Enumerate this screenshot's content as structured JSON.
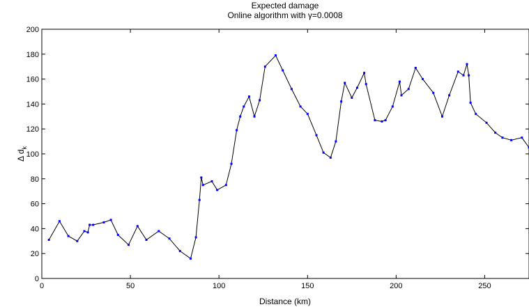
{
  "chart_data": {
    "type": "line",
    "title": "Expected damage",
    "subtitle": "Online algorithm with γ=0.0008",
    "xlabel": "Distance (km)",
    "ylabel": "Δ d",
    "ylabel_subscript": "k",
    "xlim": [
      0,
      275
    ],
    "ylim": [
      0,
      200
    ],
    "xticks": [
      0,
      50,
      100,
      150,
      200,
      250
    ],
    "yticks": [
      0,
      20,
      40,
      60,
      80,
      100,
      120,
      140,
      160,
      180,
      200
    ],
    "grid": false,
    "line_color": "#000000",
    "marker_color": "#0000ff",
    "x": [
      4,
      10,
      15,
      20,
      24,
      26,
      27,
      29,
      35,
      39,
      43,
      49,
      54,
      59,
      66,
      72,
      78,
      84,
      87,
      89,
      90,
      91,
      96,
      99,
      104,
      107,
      110,
      112,
      114,
      117,
      120,
      123,
      126,
      132,
      136,
      141,
      146,
      150,
      155,
      159,
      163,
      166,
      169,
      171,
      175,
      178,
      182,
      183,
      188,
      192,
      194,
      198,
      202,
      203,
      207,
      211,
      215,
      221,
      226,
      230,
      235,
      238,
      240,
      241,
      242,
      245,
      251,
      256,
      260,
      265,
      271,
      275
    ],
    "values": [
      31,
      46,
      34,
      30,
      38,
      37,
      43,
      43,
      45,
      47,
      35,
      27,
      42,
      31,
      38,
      32,
      22,
      16,
      33,
      63,
      81,
      75,
      78,
      71,
      75,
      92,
      119,
      130,
      138,
      146,
      130,
      143,
      170,
      179,
      167,
      152,
      138,
      132,
      115,
      101,
      97,
      110,
      142,
      157,
      145,
      153,
      165,
      156,
      127,
      126,
      127,
      138,
      158,
      147,
      152,
      169,
      160,
      149,
      130,
      147,
      166,
      163,
      172,
      163,
      141,
      132,
      125,
      117,
      113,
      111,
      113,
      105
    ]
  }
}
